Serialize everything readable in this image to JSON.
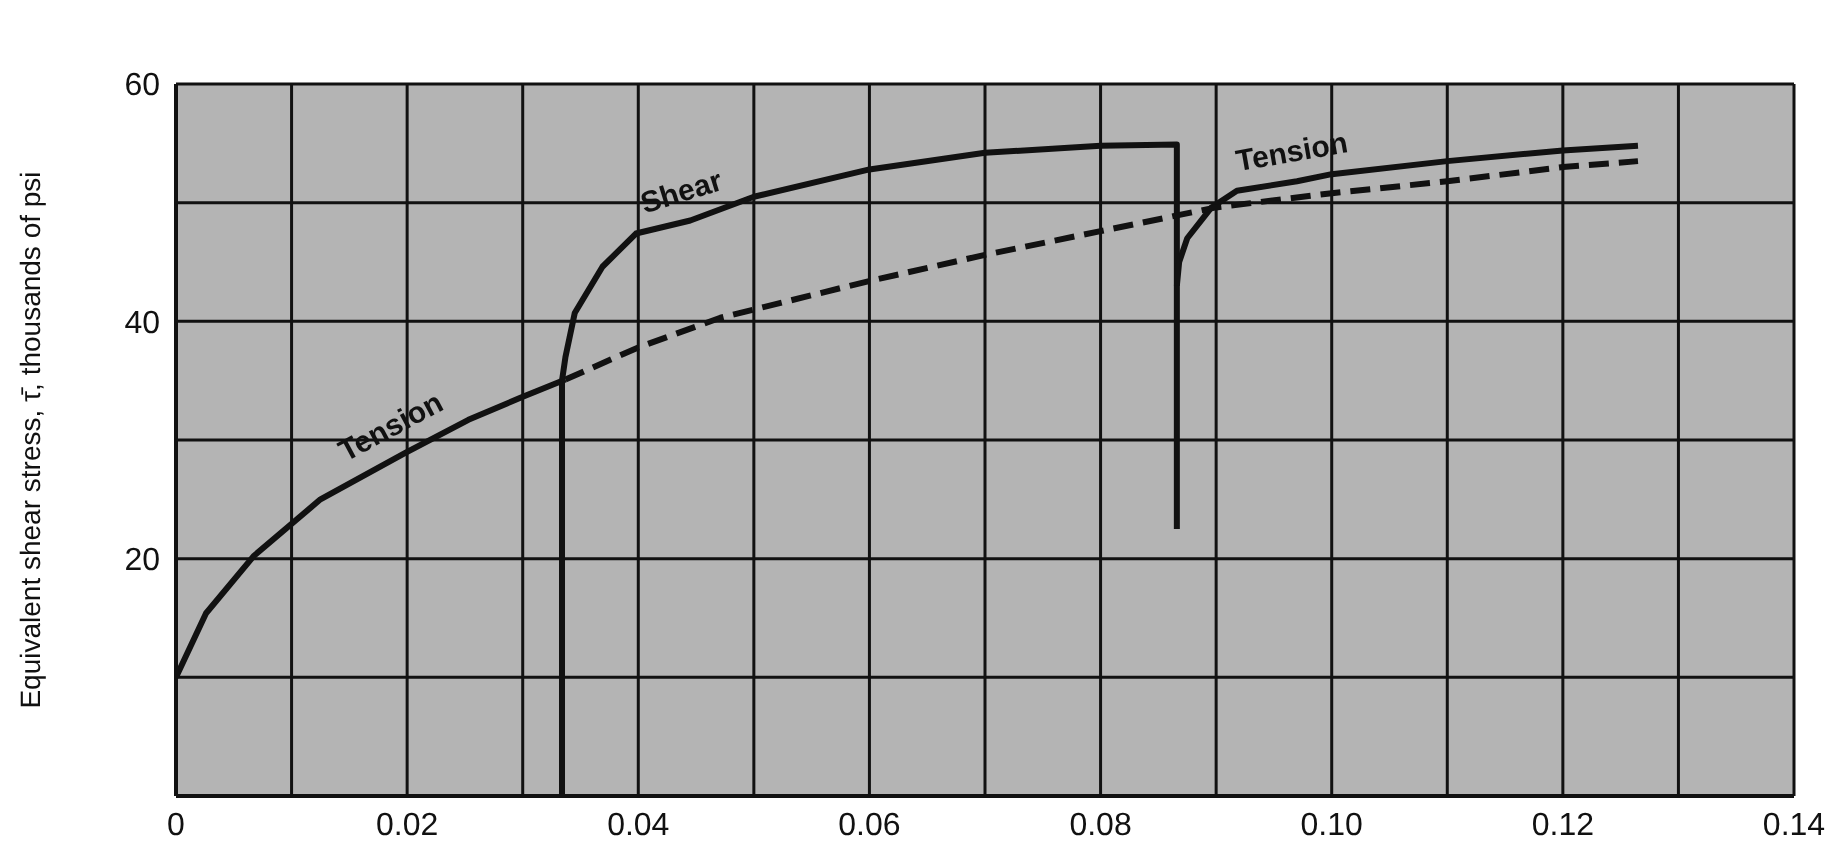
{
  "chart_data": {
    "type": "line",
    "ylabel": "Equivalent shear stress, τ̄, thousands of psi",
    "xlim": [
      0,
      0.14
    ],
    "ylim": [
      0,
      60
    ],
    "xticks": [
      0,
      {
        "value": 0.01,
        "label": null
      },
      0.02,
      {
        "value": 0.03,
        "label": null
      },
      0.04,
      {
        "value": 0.05,
        "label": null
      },
      0.06,
      {
        "value": 0.07,
        "label": null
      },
      0.08,
      {
        "value": 0.09,
        "label": null
      },
      {
        "value": 0.1,
        "label": "0.10"
      },
      {
        "value": 0.11,
        "label": null
      },
      0.12,
      {
        "value": 0.13,
        "label": null
      },
      0.14
    ],
    "yticks": [
      {
        "value": 0,
        "label": null
      },
      {
        "value": 10,
        "label": null
      },
      20,
      {
        "value": 30,
        "label": null
      },
      40,
      {
        "value": 50,
        "label": null
      },
      60
    ],
    "grid": true,
    "line_style": "solid",
    "marker": "none",
    "series": [
      {
        "name": "Tension",
        "color": "#111111",
        "x": [
          0,
          0.0026,
          0.0067,
          0.0125,
          0.0198,
          0.0253,
          0.0299,
          0.0337
        ],
        "values": [
          10,
          15.4,
          20.2,
          25,
          28.9,
          31.7,
          33.6,
          35.1
        ]
      },
      {
        "name": "Shear",
        "color": "#111111",
        "x": [
          0.0334,
          0.0334,
          0.0337,
          0.0345,
          0.0369,
          0.0398,
          0.0445,
          0.05,
          0.06,
          0.07,
          0.08,
          0.0866,
          0.0866
        ],
        "values": [
          0,
          35,
          37,
          40.7,
          44.6,
          47.4,
          48.5,
          50.5,
          52.8,
          54.2,
          54.8,
          54.9,
          22.5
        ]
      },
      {
        "name": "Tension",
        "color": "#111111",
        "x": [
          0.0866,
          0.0868,
          0.0875,
          0.0896,
          0.0918,
          0.097,
          0.1,
          0.11,
          0.12,
          0.1265
        ],
        "values": [
          43,
          45,
          47,
          49.6,
          51,
          51.8,
          52.4,
          53.5,
          54.4,
          54.8
        ]
      },
      {
        "color": "#111111",
        "line_style": "dashed",
        "x": [
          0.0337,
          0.04,
          0.0471,
          0.06,
          0.07,
          0.08,
          0.09,
          0.1,
          0.11,
          0.12,
          0.1265
        ],
        "values": [
          35.1,
          37.8,
          40.3,
          43.4,
          45.6,
          47.6,
          49.6,
          50.8,
          51.8,
          53,
          53.5
        ]
      }
    ]
  }
}
